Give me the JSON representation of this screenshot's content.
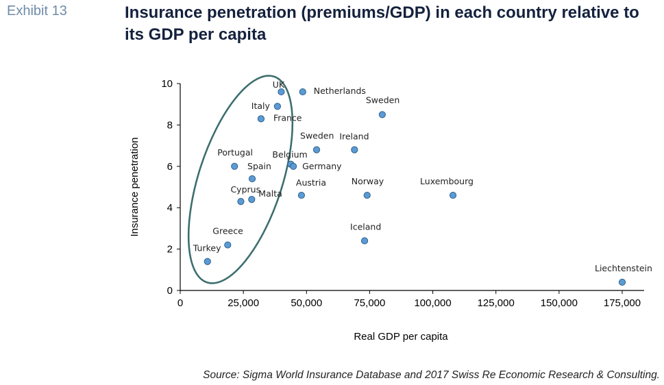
{
  "header": {
    "exhibit": "Exhibit 13",
    "title": "Insurance penetration (premiums/GDP) in each country relative to its GDP per capita"
  },
  "footer": {
    "source": "Source: Sigma World Insurance Database and 2017 Swiss Re Economic Research & Consulting."
  },
  "chart_data": {
    "type": "scatter",
    "xlabel": "Real GDP per capita",
    "ylabel": "Insurance penetration",
    "xlim": [
      0,
      175000
    ],
    "ylim": [
      0,
      10
    ],
    "xticks": [
      0,
      25000,
      50000,
      75000,
      100000,
      125000,
      150000,
      175000
    ],
    "xtick_labels": [
      "0",
      "25,000",
      "50,000",
      "75,000",
      "100,000",
      "125,000",
      "150,000",
      "175,000"
    ],
    "yticks": [
      0,
      2,
      4,
      6,
      8,
      10
    ],
    "ytick_labels": [
      "0",
      "2",
      "4",
      "6",
      "8",
      "10"
    ],
    "grid": false,
    "marker_color": "#5b9bd5",
    "marker_edge_color": "#2e5f8a",
    "highlight_color": "#3d6e6e",
    "points": [
      {
        "label": "UK",
        "x": 40000,
        "y": 9.6
      },
      {
        "label": "Netherlands",
        "x": 48500,
        "y": 9.6
      },
      {
        "label": "Italy",
        "x": 38500,
        "y": 8.9
      },
      {
        "label": "France",
        "x": 32000,
        "y": 8.3
      },
      {
        "label": "Sweden",
        "x": 80000,
        "y": 8.5
      },
      {
        "label": "Sweden",
        "x": 54000,
        "y": 6.8
      },
      {
        "label": "Ireland",
        "x": 69000,
        "y": 6.8
      },
      {
        "label": "Portugal",
        "x": 21500,
        "y": 6.0
      },
      {
        "label": "Belgium",
        "x": 43800,
        "y": 6.1
      },
      {
        "label": "Germany",
        "x": 44800,
        "y": 6.0
      },
      {
        "label": "Spain",
        "x": 28500,
        "y": 5.4
      },
      {
        "label": "Cyprus",
        "x": 24000,
        "y": 4.3
      },
      {
        "label": "Malta",
        "x": 28300,
        "y": 4.4
      },
      {
        "label": "Austria",
        "x": 48000,
        "y": 4.6
      },
      {
        "label": "Norway",
        "x": 74000,
        "y": 4.6
      },
      {
        "label": "Luxembourg",
        "x": 108000,
        "y": 4.6
      },
      {
        "label": "Iceland",
        "x": 73000,
        "y": 2.4
      },
      {
        "label": "Greece",
        "x": 18800,
        "y": 2.2
      },
      {
        "label": "Turkey",
        "x": 10800,
        "y": 1.4
      },
      {
        "label": "Liechtenstein",
        "x": 175000,
        "y": 0.4
      }
    ]
  }
}
